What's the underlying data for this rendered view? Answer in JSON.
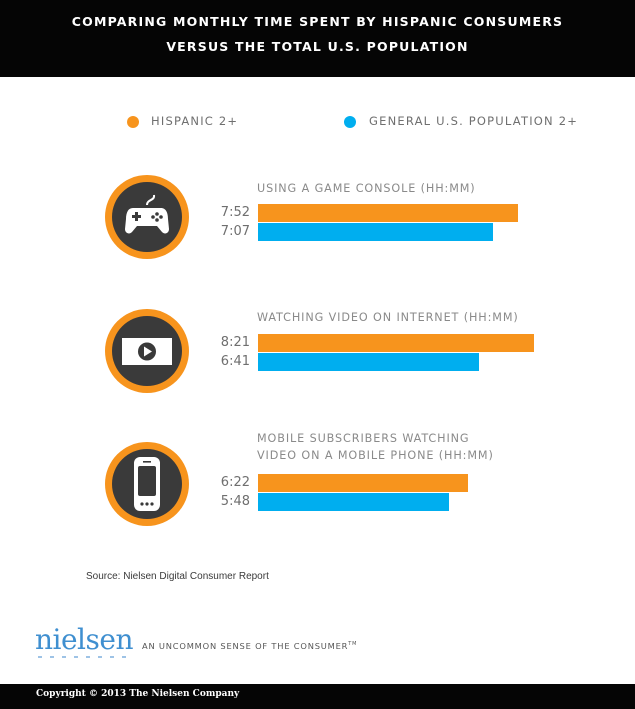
{
  "header": {
    "line1": "COMPARING MONTHLY TIME SPENT BY HISPANIC CONSUMERS",
    "line2": "VERSUS THE TOTAL U.S. POPULATION"
  },
  "legend": [
    {
      "label": "HISPANIC 2+",
      "color": "#F7941D"
    },
    {
      "label": "GENERAL U.S. POPULATION 2+",
      "color": "#00AEEF"
    }
  ],
  "chart_data": {
    "type": "bar",
    "orientation": "horizontal",
    "unit": "HH:MM",
    "categories": [
      {
        "label_lines": [
          "USING A GAME CONSOLE (HH:MM)"
        ],
        "icon": "game-controller-icon"
      },
      {
        "label_lines": [
          "WATCHING VIDEO ON INTERNET (HH:MM)"
        ],
        "icon": "video-play-icon"
      },
      {
        "label_lines": [
          "MOBILE SUBSCRIBERS WATCHING",
          "VIDEO ON A MOBILE PHONE (HH:MM)"
        ],
        "icon": "mobile-phone-icon"
      }
    ],
    "series": [
      {
        "name": "HISPANIC 2+",
        "color": "#F7941D",
        "labels": [
          "7:52",
          "8:21",
          "6:22"
        ],
        "values_minutes": [
          472,
          501,
          382
        ]
      },
      {
        "name": "GENERAL U.S. POPULATION 2+",
        "color": "#00AEEF",
        "labels": [
          "7:07",
          "6:41",
          "5:48"
        ],
        "values_minutes": [
          427,
          401,
          348
        ]
      }
    ],
    "xlim_minutes": [
      0,
      527
    ],
    "axis_visible": false,
    "grid": false,
    "legend_position": "top"
  },
  "source": "Source: Nielsen Digital Consumer Report",
  "brand": {
    "logo": "nielsen",
    "tagline": "AN UNCOMMON SENSE OF THE CONSUMER",
    "tagline_mark": "TM",
    "accent": "#3F8FD0"
  },
  "footer": {
    "copyright": "Copyright © 2013 The Nielsen Company"
  },
  "colors": {
    "icon_ring": "#F7941D",
    "icon_inner": "#3A3A3A",
    "background": "#FFFFFF",
    "bar_dark": "#050505"
  }
}
